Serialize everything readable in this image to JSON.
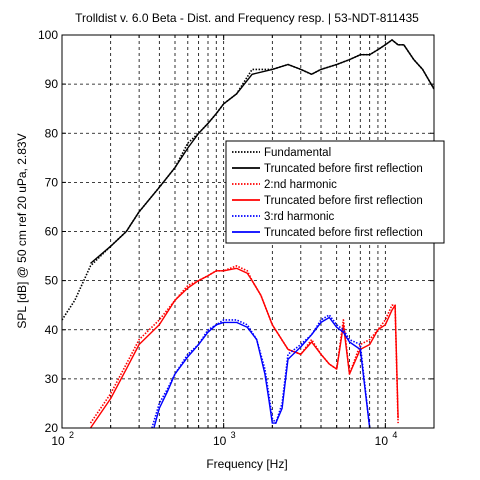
{
  "chart_data": {
    "type": "line",
    "title": "Trolldist v. 6.0 Beta - Dist. and Frequency resp. | 53-NDT-811435",
    "xlabel": "Frequency [Hz]",
    "ylabel": "SPL [dB] @ 50 cm ref 20 uPa, 2.83V",
    "xscale": "log",
    "xlim": [
      100,
      20000
    ],
    "ylim": [
      20,
      100
    ],
    "x_ticks": [
      100,
      1000,
      10000
    ],
    "x_tick_labels": [
      {
        "base": "10",
        "exp": "2"
      },
      {
        "base": "10",
        "exp": "3"
      },
      {
        "base": "10",
        "exp": "4"
      }
    ],
    "y_ticks": [
      20,
      30,
      40,
      50,
      60,
      70,
      80,
      90,
      100
    ],
    "y_tick_labels": [
      "20",
      "30",
      "40",
      "50",
      "60",
      "70",
      "80",
      "90",
      "100"
    ],
    "grid": true,
    "legend_position": "center-right",
    "series": [
      {
        "name": "Fundamental",
        "color": "#000000",
        "style": "dotted",
        "x": [
          100,
          120,
          150,
          200,
          250,
          300,
          400,
          500,
          600,
          700,
          800,
          900,
          1000,
          1200,
          1500,
          2000,
          2500,
          3000,
          3500,
          4000,
          5000,
          6000,
          7000,
          8000,
          9000,
          10000,
          11000,
          12000,
          13000,
          15000,
          17000,
          20000
        ],
        "y": [
          42,
          46,
          53,
          57,
          60,
          64,
          69,
          73,
          78,
          80,
          82,
          84,
          86,
          88,
          93,
          93,
          94,
          93,
          92,
          93,
          94,
          95,
          96,
          96,
          97,
          98,
          99,
          98,
          98,
          95,
          93,
          89
        ]
      },
      {
        "name": "Truncated before first reflection",
        "color": "#000000",
        "style": "solid",
        "x": [
          150,
          200,
          250,
          300,
          400,
          500,
          600,
          700,
          800,
          900,
          1000,
          1200,
          1500,
          2000,
          2500,
          3000,
          3500,
          4000,
          5000,
          6000,
          7000,
          8000,
          9000,
          10000,
          11000,
          12000,
          13000,
          15000,
          17000,
          20000
        ],
        "y": [
          53.5,
          57,
          60,
          64,
          69,
          73,
          77,
          80,
          82,
          84,
          86,
          88,
          92,
          93,
          94,
          93,
          92,
          93,
          94,
          95,
          96,
          96,
          97,
          98,
          99,
          98,
          98,
          95,
          93,
          89
        ]
      },
      {
        "name": "2:nd harmonic",
        "color": "#ff0000",
        "style": "dotted",
        "x": [
          150,
          200,
          250,
          300,
          400,
          500,
          600,
          700,
          800,
          900,
          1000,
          1200,
          1400,
          1500,
          1700,
          2000,
          2500,
          3000,
          3500,
          4000,
          4500,
          5000,
          5500,
          6000,
          7000,
          8000,
          9000,
          10000,
          11000,
          11500,
          12000
        ],
        "y": [
          21,
          27,
          33,
          38,
          42,
          46,
          49,
          50,
          51,
          52,
          52,
          53,
          52,
          50,
          47,
          41,
          36,
          35,
          38,
          35,
          33,
          32,
          42,
          31,
          37,
          38,
          40,
          42,
          45,
          45,
          21
        ]
      },
      {
        "name": "Truncated before first reflection",
        "color": "#ff0000",
        "style": "solid",
        "x": [
          150,
          200,
          250,
          300,
          400,
          500,
          600,
          700,
          800,
          900,
          1000,
          1200,
          1400,
          1500,
          1700,
          2000,
          2500,
          3000,
          3500,
          4000,
          4500,
          5000,
          5500,
          6000,
          7000,
          8000,
          9000,
          10000,
          11000,
          11500,
          12000
        ],
        "y": [
          20,
          26,
          32,
          37,
          41,
          46,
          48.5,
          50,
          51,
          52,
          52,
          52.5,
          51.5,
          50,
          47,
          41,
          36,
          35,
          37.5,
          35,
          33,
          32,
          41,
          31,
          36,
          37,
          40,
          41,
          44,
          45,
          22
        ]
      },
      {
        "name": "3:rd harmonic",
        "color": "#0000ff",
        "style": "dotted",
        "x": [
          360,
          400,
          450,
          500,
          600,
          700,
          800,
          900,
          1000,
          1200,
          1400,
          1600,
          1800,
          1900,
          2000,
          2100,
          2300,
          2500,
          3000,
          3500,
          4000,
          4500,
          5000,
          5500,
          6000,
          7000,
          8000
        ],
        "y": [
          20,
          25,
          28,
          31,
          35,
          37,
          40,
          41,
          42,
          42,
          41,
          38,
          32,
          27,
          22,
          21,
          25,
          35,
          37,
          39,
          42,
          43,
          41,
          40,
          38,
          37,
          20
        ]
      },
      {
        "name": "Truncated before first reflection",
        "color": "#0000ff",
        "style": "solid",
        "x": [
          370,
          400,
          450,
          500,
          600,
          700,
          800,
          900,
          1000,
          1200,
          1400,
          1600,
          1800,
          1900,
          2000,
          2100,
          2300,
          2500,
          3000,
          3500,
          4000,
          4500,
          5000,
          5500,
          6000,
          7000,
          8000
        ],
        "y": [
          20,
          24,
          27.5,
          31,
          34.5,
          37,
          39.5,
          41,
          41.5,
          41.5,
          40.5,
          38,
          31,
          26,
          21,
          21,
          24,
          34,
          36.5,
          39,
          41.5,
          42.5,
          40.5,
          39.5,
          37.5,
          36,
          20
        ]
      }
    ]
  }
}
